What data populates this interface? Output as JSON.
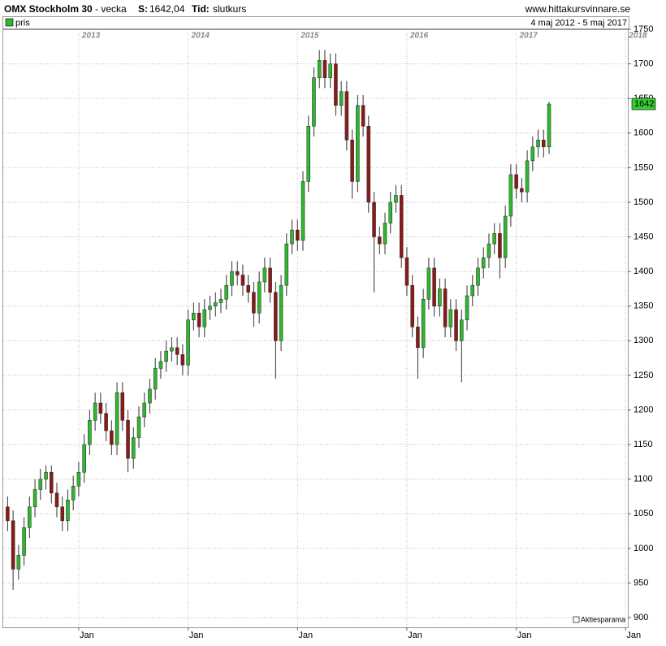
{
  "chart_data": {
    "type": "candlestick",
    "title": "OMX Stockholm 30",
    "subtitle": "- vecka",
    "current_label": "S:",
    "current": {
      "value": 1642.04,
      "label": "1642,04"
    },
    "time_label": "Tid:",
    "time_value": "slutkurs",
    "source": "www.hittakursvinnare.se",
    "legend": "pris",
    "date_range": "4 maj 2012 - 5 maj 2017",
    "credit": "Aktiesparama",
    "last_tag": 1642,
    "up_color": "#2eb82e",
    "down_color": "#8b1a1a",
    "grid": true,
    "xlim": [
      2012.31,
      2018.02
    ],
    "ylim": [
      886,
      1750
    ],
    "xticks": [
      {
        "value": 2013,
        "label": "2013"
      },
      {
        "value": 2014,
        "label": "2014"
      },
      {
        "value": 2015,
        "label": "2015"
      },
      {
        "value": 2016,
        "label": "2016"
      },
      {
        "value": 2017,
        "label": "2017"
      },
      {
        "value": 2018,
        "label": "2018"
      }
    ],
    "xticks_bottom": [
      {
        "value": 2013,
        "label": "Jan"
      },
      {
        "value": 2014,
        "label": "Jan"
      },
      {
        "value": 2015,
        "label": "Jan"
      },
      {
        "value": 2016,
        "label": "Jan"
      },
      {
        "value": 2017,
        "label": "Jan"
      },
      {
        "value": 2018,
        "label": "Jan"
      }
    ],
    "yticks": [
      900,
      950,
      1000,
      1050,
      1100,
      1150,
      1200,
      1250,
      1300,
      1350,
      1400,
      1450,
      1500,
      1550,
      1600,
      1650,
      1700,
      1750
    ],
    "x": [
      2012.35,
      2012.4,
      2012.45,
      2012.5,
      2012.55,
      2012.6,
      2012.65,
      2012.7,
      2012.75,
      2012.8,
      2012.85,
      2012.9,
      2012.95,
      2013.0,
      2013.05,
      2013.1,
      2013.15,
      2013.2,
      2013.25,
      2013.3,
      2013.35,
      2013.4,
      2013.45,
      2013.5,
      2013.55,
      2013.6,
      2013.65,
      2013.7,
      2013.75,
      2013.8,
      2013.85,
      2013.9,
      2013.95,
      2014.0,
      2014.05,
      2014.1,
      2014.15,
      2014.2,
      2014.25,
      2014.3,
      2014.35,
      2014.4,
      2014.45,
      2014.5,
      2014.55,
      2014.6,
      2014.65,
      2014.7,
      2014.75,
      2014.8,
      2014.85,
      2014.9,
      2014.95,
      2015.0,
      2015.05,
      2015.1,
      2015.15,
      2015.2,
      2015.25,
      2015.3,
      2015.35,
      2015.4,
      2015.45,
      2015.5,
      2015.55,
      2015.6,
      2015.65,
      2015.7,
      2015.75,
      2015.8,
      2015.85,
      2015.9,
      2015.95,
      2016.0,
      2016.05,
      2016.1,
      2016.15,
      2016.2,
      2016.25,
      2016.3,
      2016.35,
      2016.4,
      2016.45,
      2016.5,
      2016.55,
      2016.6,
      2016.65,
      2016.7,
      2016.75,
      2016.8,
      2016.85,
      2016.9,
      2016.95,
      2017.0,
      2017.05,
      2017.1,
      2017.15,
      2017.2,
      2017.25,
      2017.3
    ],
    "open": [
      1060,
      1040,
      970,
      990,
      1030,
      1060,
      1085,
      1100,
      1110,
      1080,
      1060,
      1040,
      1070,
      1090,
      1110,
      1150,
      1185,
      1210,
      1195,
      1170,
      1150,
      1225,
      1185,
      1130,
      1160,
      1190,
      1210,
      1230,
      1260,
      1270,
      1285,
      1290,
      1280,
      1265,
      1330,
      1340,
      1320,
      1345,
      1350,
      1355,
      1360,
      1380,
      1400,
      1395,
      1380,
      1370,
      1340,
      1385,
      1405,
      1370,
      1300,
      1380,
      1440,
      1460,
      1445,
      1530,
      1610,
      1680,
      1705,
      1680,
      1700,
      1640,
      1660,
      1590,
      1530,
      1640,
      1610,
      1500,
      1450,
      1440,
      1470,
      1500,
      1510,
      1420,
      1380,
      1320,
      1290,
      1360,
      1405,
      1350,
      1375,
      1320,
      1345,
      1300,
      1330,
      1365,
      1380,
      1405,
      1420,
      1440,
      1455,
      1420,
      1480,
      1540,
      1520,
      1515,
      1560,
      1580,
      1590,
      1580
    ],
    "high": [
      1075,
      1055,
      1005,
      1045,
      1075,
      1100,
      1115,
      1120,
      1120,
      1095,
      1075,
      1085,
      1105,
      1125,
      1165,
      1200,
      1225,
      1225,
      1210,
      1185,
      1240,
      1240,
      1200,
      1175,
      1205,
      1225,
      1245,
      1275,
      1285,
      1300,
      1305,
      1305,
      1295,
      1345,
      1355,
      1355,
      1360,
      1365,
      1370,
      1375,
      1395,
      1415,
      1415,
      1410,
      1395,
      1385,
      1400,
      1420,
      1420,
      1385,
      1395,
      1455,
      1475,
      1475,
      1545,
      1625,
      1695,
      1720,
      1720,
      1715,
      1715,
      1675,
      1675,
      1605,
      1655,
      1655,
      1625,
      1515,
      1465,
      1485,
      1515,
      1525,
      1525,
      1435,
      1395,
      1335,
      1375,
      1420,
      1420,
      1390,
      1390,
      1360,
      1360,
      1345,
      1380,
      1395,
      1420,
      1435,
      1455,
      1470,
      1470,
      1495,
      1555,
      1555,
      1535,
      1575,
      1595,
      1605,
      1605,
      1645
    ],
    "low": [
      1025,
      940,
      955,
      975,
      1015,
      1045,
      1070,
      1085,
      1065,
      1045,
      1025,
      1025,
      1055,
      1075,
      1095,
      1135,
      1170,
      1180,
      1155,
      1135,
      1135,
      1170,
      1110,
      1115,
      1145,
      1175,
      1195,
      1215,
      1245,
      1255,
      1270,
      1265,
      1250,
      1250,
      1315,
      1305,
      1305,
      1330,
      1335,
      1340,
      1345,
      1365,
      1380,
      1365,
      1355,
      1320,
      1325,
      1370,
      1355,
      1245,
      1285,
      1365,
      1425,
      1430,
      1430,
      1515,
      1595,
      1665,
      1665,
      1665,
      1625,
      1625,
      1575,
      1505,
      1515,
      1595,
      1485,
      1370,
      1425,
      1425,
      1455,
      1485,
      1405,
      1365,
      1305,
      1245,
      1275,
      1345,
      1335,
      1335,
      1305,
      1305,
      1285,
      1240,
      1315,
      1350,
      1365,
      1390,
      1405,
      1425,
      1390,
      1405,
      1465,
      1505,
      1500,
      1500,
      1545,
      1565,
      1565,
      1570
    ],
    "close": [
      1040,
      970,
      990,
      1030,
      1060,
      1085,
      1100,
      1110,
      1080,
      1060,
      1040,
      1070,
      1090,
      1110,
      1150,
      1185,
      1210,
      1195,
      1170,
      1150,
      1225,
      1185,
      1130,
      1160,
      1190,
      1210,
      1230,
      1260,
      1270,
      1285,
      1290,
      1280,
      1265,
      1330,
      1340,
      1320,
      1345,
      1350,
      1355,
      1360,
      1380,
      1400,
      1395,
      1380,
      1370,
      1340,
      1385,
      1405,
      1370,
      1300,
      1380,
      1440,
      1460,
      1445,
      1530,
      1610,
      1680,
      1705,
      1680,
      1700,
      1640,
      1660,
      1590,
      1530,
      1640,
      1610,
      1500,
      1450,
      1440,
      1470,
      1500,
      1510,
      1420,
      1380,
      1320,
      1290,
      1360,
      1405,
      1350,
      1375,
      1320,
      1345,
      1300,
      1330,
      1365,
      1380,
      1405,
      1420,
      1440,
      1455,
      1420,
      1480,
      1540,
      1520,
      1515,
      1560,
      1580,
      1590,
      1580,
      1642
    ]
  }
}
